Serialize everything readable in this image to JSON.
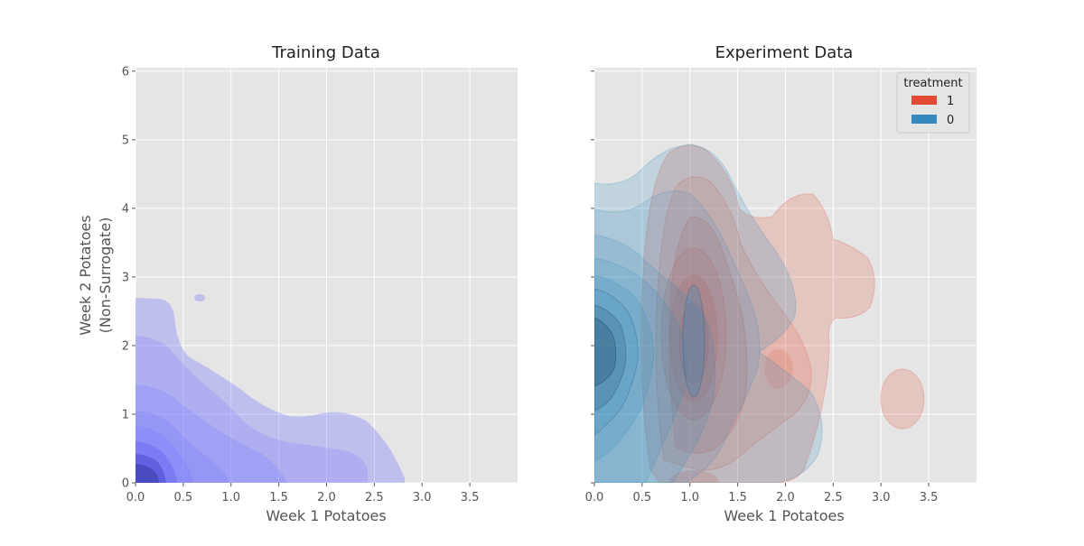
{
  "chart_data": [
    {
      "type": "kde-contour",
      "title": "Training Data",
      "xlabel": "Week 1 Potatoes",
      "ylabel_lines": [
        "Week 2 Potatoes",
        "(Non-Surrogate)"
      ],
      "xlim": [
        0,
        4.0
      ],
      "ylim": [
        0,
        6.05
      ],
      "xticks": [
        "0.0",
        "0.5",
        "1.0",
        "1.5",
        "2.0",
        "2.5",
        "3.0",
        "3.5"
      ],
      "yticks": [
        "0",
        "1",
        "2",
        "3",
        "4",
        "5",
        "6"
      ],
      "grid": true,
      "series": [
        {
          "color": "#7070ff",
          "density_peak": [
            0.05,
            0.05
          ],
          "support_extent": {
            "x": [
              0,
              2.8
            ],
            "y": [
              0,
              2.7
            ]
          }
        }
      ]
    },
    {
      "type": "kde-contour",
      "title": "Experiment Data",
      "xlabel": "Week 1 Potatoes",
      "xlim": [
        0,
        4.0
      ],
      "ylim": [
        0,
        6.05
      ],
      "xticks": [
        "0.0",
        "0.5",
        "1.0",
        "1.5",
        "2.0",
        "2.5",
        "3.0",
        "3.5"
      ],
      "grid": true,
      "legend": {
        "title": "treatment",
        "position": "top-right",
        "entries": [
          {
            "label": "1",
            "color": "#E24A33"
          },
          {
            "label": "0",
            "color": "#348ABD"
          }
        ]
      },
      "series": [
        {
          "name": "1",
          "color": "#E24A33",
          "density_peak": [
            1.05,
            1.9
          ],
          "support_extent": {
            "x": [
              0.5,
              3.6
            ],
            "y": [
              0,
              4.9
            ]
          }
        },
        {
          "name": "0",
          "color": "#348ABD",
          "density_peak": [
            0.05,
            2.0
          ],
          "support_extent": {
            "x": [
              0,
              2.4
            ],
            "y": [
              0,
              4.9
            ]
          }
        }
      ]
    }
  ]
}
